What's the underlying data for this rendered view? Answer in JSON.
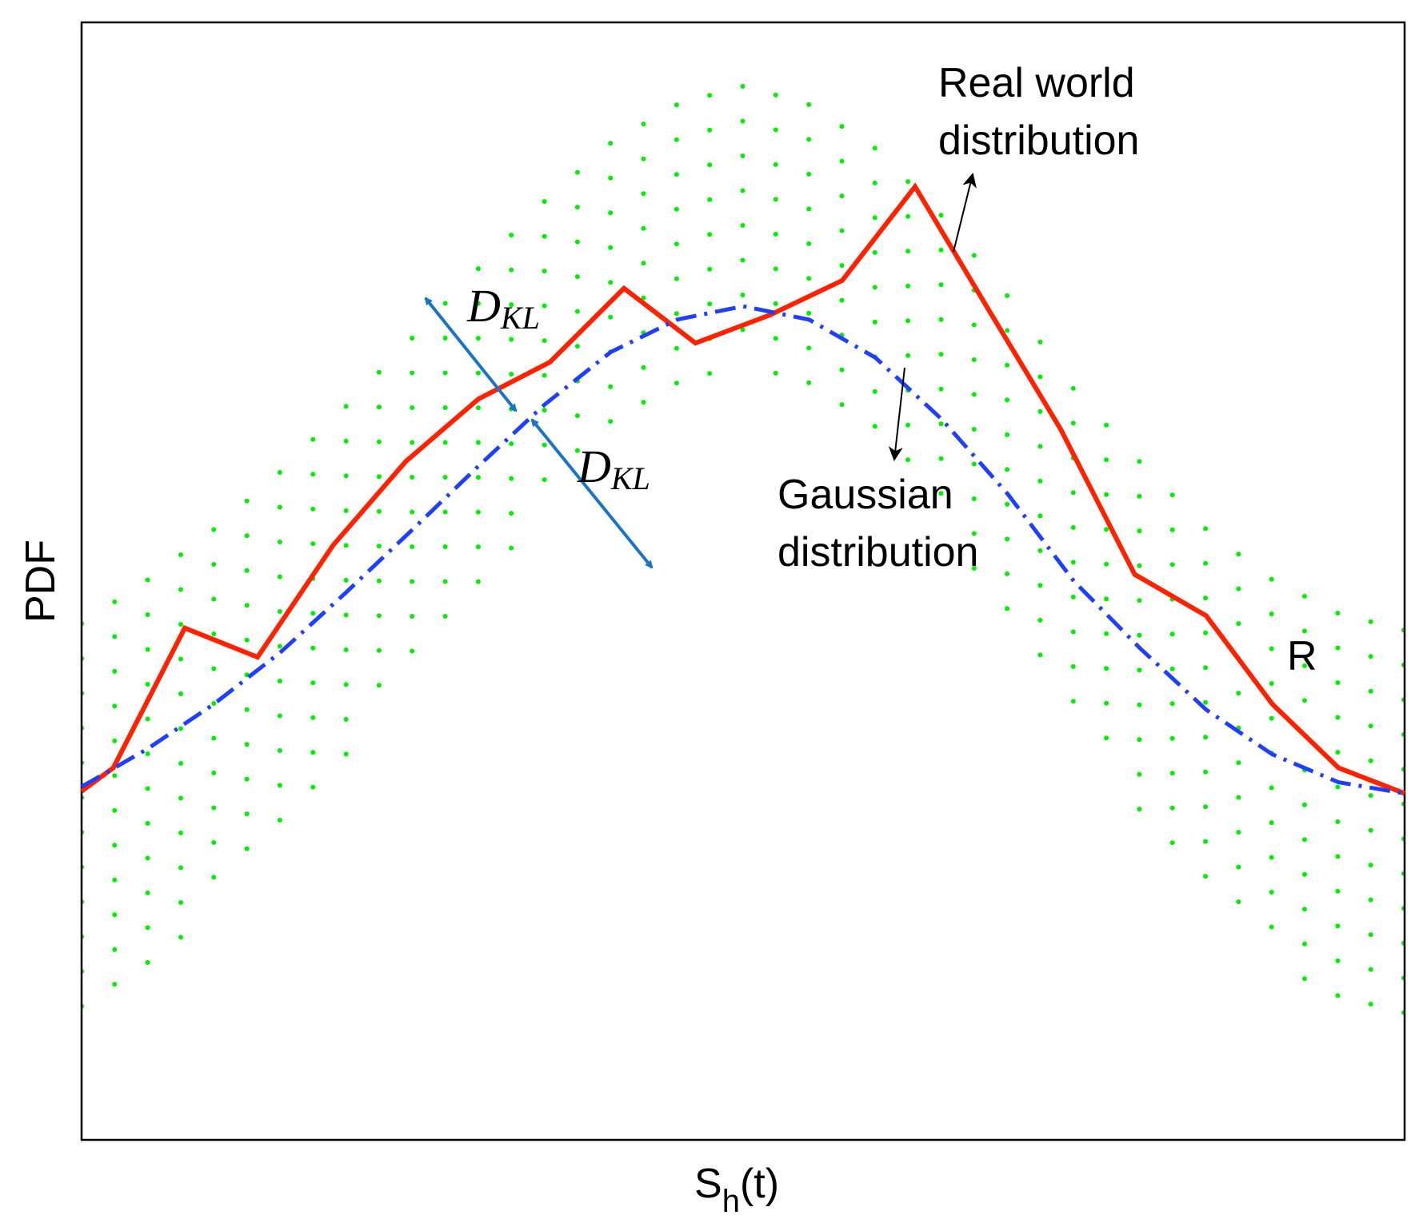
{
  "chart_data": {
    "type": "line",
    "xlabel": "S",
    "xlabel_sub": "h",
    "xlabel_suffix": "(t)",
    "ylabel": "PDF",
    "xlim": [
      0,
      1
    ],
    "ylim": [
      0,
      1
    ],
    "grid": false,
    "series": [
      {
        "name": "Real world distribution",
        "style": "solid",
        "color": "#ff2200",
        "x": [
          0.0,
          0.024,
          0.078,
          0.133,
          0.19,
          0.245,
          0.3,
          0.354,
          0.41,
          0.464,
          0.52,
          0.575,
          0.63,
          0.685,
          0.74,
          0.796,
          0.85,
          0.9,
          0.95,
          1.0
        ],
        "y": [
          0.312,
          0.333,
          0.458,
          0.432,
          0.532,
          0.607,
          0.663,
          0.696,
          0.762,
          0.713,
          0.738,
          0.769,
          0.853,
          0.744,
          0.636,
          0.506,
          0.469,
          0.39,
          0.333,
          0.31
        ]
      },
      {
        "name": "Gaussian distribution",
        "style": "dash-dot",
        "color": "#1f3fff",
        "x": [
          0.0,
          0.05,
          0.1,
          0.15,
          0.2,
          0.25,
          0.3,
          0.35,
          0.4,
          0.45,
          0.5,
          0.55,
          0.6,
          0.65,
          0.7,
          0.75,
          0.8,
          0.85,
          0.9,
          0.95,
          1.0
        ],
        "y": [
          0.316,
          0.35,
          0.39,
          0.436,
          0.49,
          0.546,
          0.603,
          0.658,
          0.705,
          0.734,
          0.746,
          0.734,
          0.7,
          0.645,
          0.578,
          0.5,
          0.44,
          0.385,
          0.345,
          0.32,
          0.31
        ]
      }
    ],
    "annotations": {
      "real_world": [
        "Real world",
        "distribution"
      ],
      "gaussian": [
        "Gaussian",
        "distribution"
      ],
      "dkl_main": "D",
      "dkl_sub": "KL",
      "region_label": "R"
    },
    "colors": {
      "dots": "#00ee00",
      "arrows_dkl": "#1a73c4",
      "axes": "#000000"
    }
  }
}
